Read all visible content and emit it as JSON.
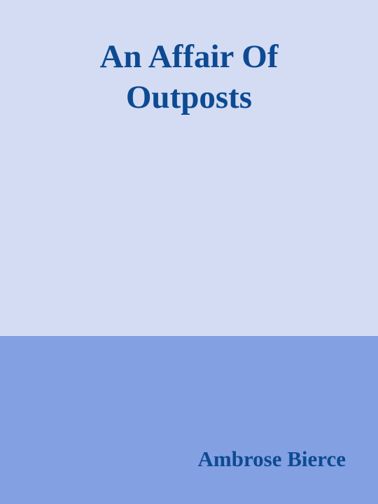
{
  "book": {
    "title_line_1": "An Affair Of",
    "title_line_2": "Outposts",
    "author": "Ambrose Bierce"
  },
  "colors": {
    "top_background": "#d4dcf3",
    "bottom_background": "#83a0e2",
    "text": "#0d4a92"
  }
}
